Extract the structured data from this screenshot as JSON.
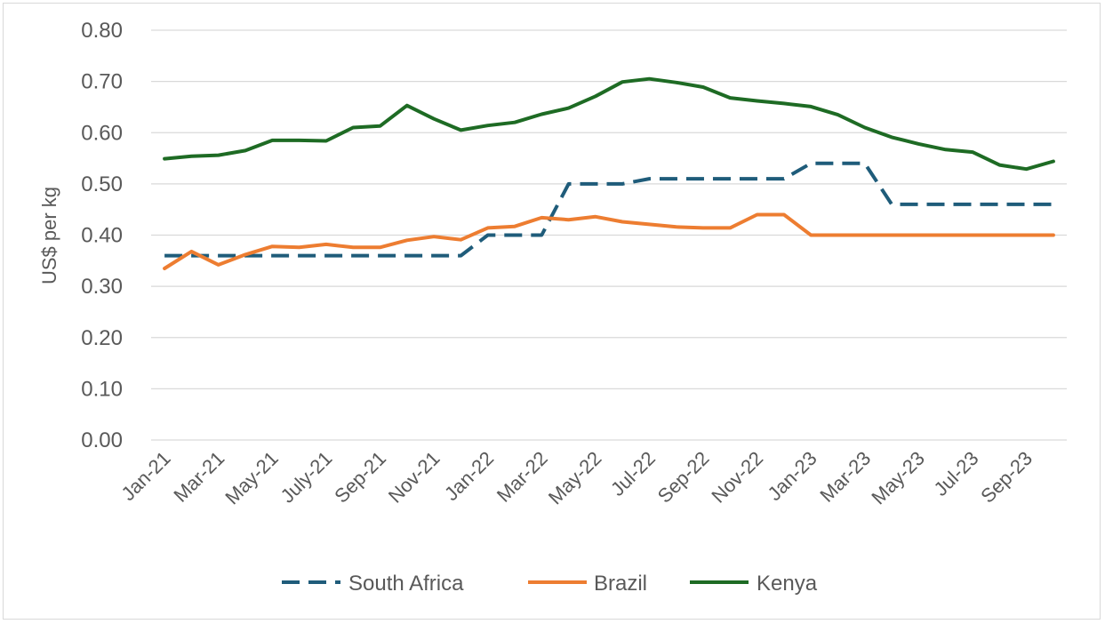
{
  "chart_data": {
    "type": "line",
    "title": "",
    "xlabel": "",
    "ylabel": "US$ per kg",
    "ylim": [
      0,
      0.8
    ],
    "y_ticks": [
      "0.00",
      "0.10",
      "0.20",
      "0.30",
      "0.40",
      "0.50",
      "0.60",
      "0.70",
      "0.80"
    ],
    "grid": "horizontal",
    "legend_position": "bottom",
    "x": [
      "Jan-21",
      "Feb-21",
      "Mar-21",
      "Apr-21",
      "May-21",
      "Jun-21",
      "July-21",
      "Aug-21",
      "Sep-21",
      "Oct-21",
      "Nov-21",
      "Dec-21",
      "Jan-22",
      "Feb-22",
      "Mar-22",
      "Apr-22",
      "May-22",
      "Jun-22",
      "Jul-22",
      "Aug-22",
      "Sep-22",
      "Oct-22",
      "Nov-22",
      "Dec-22",
      "Jan-23",
      "Feb-23",
      "Mar-23",
      "Apr-23",
      "May-23",
      "Jun-23",
      "Jul-23",
      "Aug-23",
      "Sep-23",
      "Oct-23"
    ],
    "x_tick_labels": [
      "Jan-21",
      "Mar-21",
      "May-21",
      "July-21",
      "Sep-21",
      "Nov-21",
      "Jan-22",
      "Mar-22",
      "May-22",
      "Jul-22",
      "Sep-22",
      "Nov-22",
      "Jan-23",
      "Mar-23",
      "May-23",
      "Jul-23",
      "Sep-23"
    ],
    "series": [
      {
        "name": "South Africa",
        "color": "#1f5c7a",
        "dash": "dashed",
        "values": [
          0.36,
          0.36,
          0.36,
          0.36,
          0.36,
          0.36,
          0.36,
          0.36,
          0.36,
          0.36,
          0.36,
          0.36,
          0.4,
          0.4,
          0.4,
          0.5,
          0.5,
          0.5,
          0.51,
          0.51,
          0.51,
          0.51,
          0.51,
          0.51,
          0.54,
          0.54,
          0.54,
          0.46,
          0.46,
          0.46,
          0.46,
          0.46,
          0.46,
          0.46
        ]
      },
      {
        "name": "Brazil",
        "color": "#ed7d31",
        "dash": "solid",
        "values": [
          0.335,
          0.368,
          0.342,
          0.362,
          0.378,
          0.376,
          0.382,
          0.376,
          0.376,
          0.39,
          0.397,
          0.391,
          0.414,
          0.417,
          0.434,
          0.43,
          0.436,
          0.426,
          0.421,
          0.416,
          0.414,
          0.414,
          0.44,
          0.44,
          0.4,
          0.4,
          0.4,
          0.4,
          0.4,
          0.4,
          0.4,
          0.4,
          0.4,
          0.4
        ]
      },
      {
        "name": "Kenya",
        "color": "#1e6b24",
        "dash": "solid",
        "values": [
          0.549,
          0.554,
          0.556,
          0.565,
          0.585,
          0.585,
          0.584,
          0.61,
          0.613,
          0.653,
          0.627,
          0.605,
          0.614,
          0.62,
          0.636,
          0.648,
          0.671,
          0.699,
          0.705,
          0.698,
          0.689,
          0.668,
          0.662,
          0.657,
          0.651,
          0.635,
          0.61,
          0.591,
          0.578,
          0.567,
          0.562,
          0.537,
          0.529,
          0.544
        ]
      }
    ]
  }
}
